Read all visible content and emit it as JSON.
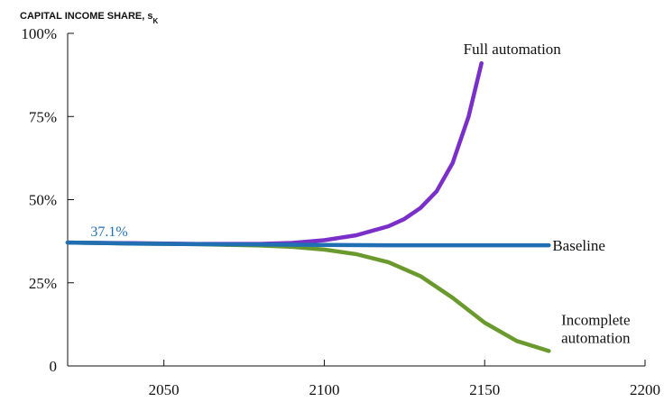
{
  "chart_data": {
    "type": "line",
    "title": "",
    "xlabel": "",
    "ylabel": {
      "main": "CAPITAL INCOME SHARE, s",
      "subscript": "K"
    },
    "xlim": [
      2020,
      2200
    ],
    "ylim": [
      0,
      100
    ],
    "x_ticks": [
      "2050",
      "2100",
      "2150",
      "2200"
    ],
    "y_ticks": [
      "0",
      "25%",
      "50%",
      "75%",
      "100%"
    ],
    "grid": false,
    "annotations": [
      {
        "text": "37.1%",
        "x": 2035,
        "y": 37.1,
        "color": "#1f6fb2"
      }
    ],
    "series": [
      {
        "name": "Baseline",
        "label_lines": [
          "Baseline"
        ],
        "color": "#1f6fb2",
        "x": [
          2020,
          2040,
          2060,
          2080,
          2100,
          2120,
          2140,
          2160,
          2170
        ],
        "y": [
          37.1,
          36.8,
          36.6,
          36.5,
          36.4,
          36.3,
          36.3,
          36.3,
          36.3
        ]
      },
      {
        "name": "Full automation",
        "label_lines": [
          "Full automation"
        ],
        "color": "#7b2fc9",
        "x": [
          2020,
          2040,
          2060,
          2080,
          2090,
          2100,
          2110,
          2120,
          2125,
          2130,
          2135,
          2140,
          2145,
          2149
        ],
        "y": [
          37.1,
          36.9,
          36.7,
          36.7,
          37.0,
          37.8,
          39.3,
          42.0,
          44.2,
          47.5,
          52.5,
          61.0,
          75.0,
          91.0
        ]
      },
      {
        "name": "Incomplete automation",
        "label_lines": [
          "Incomplete",
          "automation"
        ],
        "color": "#6a9a2e",
        "x": [
          2020,
          2040,
          2060,
          2080,
          2090,
          2100,
          2110,
          2120,
          2130,
          2140,
          2150,
          2160,
          2170
        ],
        "y": [
          37.1,
          36.8,
          36.6,
          36.2,
          35.8,
          35.0,
          33.6,
          31.2,
          27.0,
          20.5,
          13.0,
          7.5,
          4.5
        ]
      }
    ]
  }
}
